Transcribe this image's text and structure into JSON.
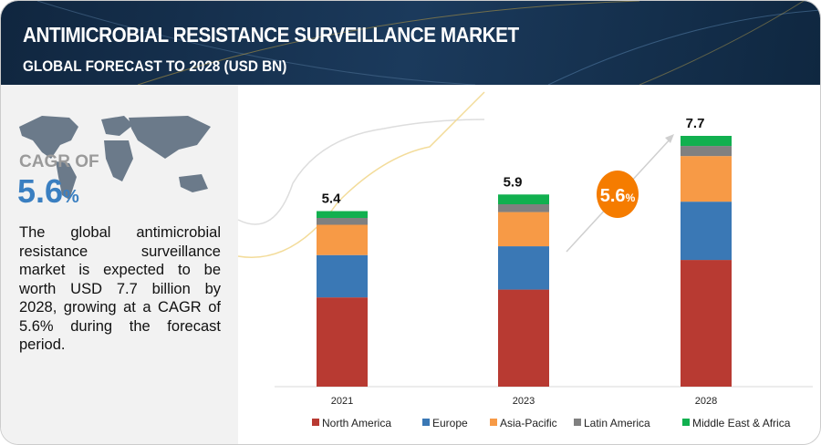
{
  "header": {
    "title": "ANTIMICROBIAL RESISTANCE SURVEILLANCE MARKET",
    "subtitle": "GLOBAL FORECAST TO 2028 (USD BN)"
  },
  "left_panel": {
    "cagr_label": "CAGR OF",
    "cagr_value": "5.6",
    "cagr_unit": "%",
    "description": "The global antimicrobial resistance surveillance market is expected to be worth USD 7.7 billion by 2028, growing at a CAGR of 5.6% during the forecast period."
  },
  "badge": {
    "value": "5.6",
    "unit": "%",
    "color": "#f57c00"
  },
  "chart_data": {
    "type": "bar",
    "stacked": true,
    "title": "Antimicrobial Resistance Surveillance Market",
    "categories": [
      "2021",
      "2023",
      "2028"
    ],
    "totals": [
      "5.4",
      "5.9",
      "7.7"
    ],
    "series": [
      {
        "name": "North America",
        "color": "#b83a32",
        "values": [
          2.74,
          2.98,
          3.89
        ]
      },
      {
        "name": "Europe",
        "color": "#3a78b5",
        "values": [
          1.3,
          1.33,
          1.79
        ]
      },
      {
        "name": "Asia-Pacific",
        "color": "#f79a46",
        "values": [
          0.93,
          1.05,
          1.4
        ]
      },
      {
        "name": "Latin America",
        "color": "#808080",
        "values": [
          0.21,
          0.24,
          0.31
        ]
      },
      {
        "name": "Middle East & Africa",
        "color": "#11b04f",
        "values": [
          0.21,
          0.3,
          0.31
        ]
      }
    ],
    "xlabel": "",
    "ylabel": "USD BN",
    "ylim": [
      0,
      7.7
    ],
    "grid": false,
    "legend": "bottom"
  }
}
